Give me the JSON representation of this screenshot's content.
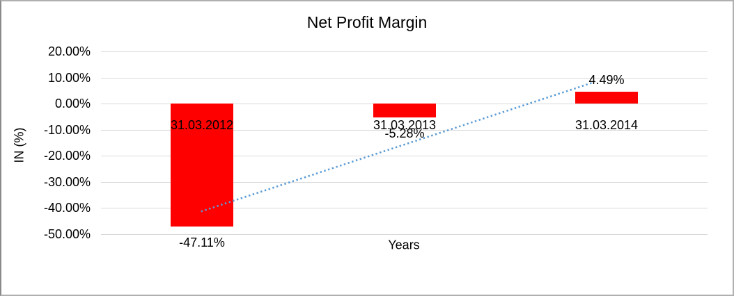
{
  "chart_data": {
    "type": "bar",
    "title": "Net Profit Margin",
    "xlabel": "Years",
    "ylabel": "IN (%)",
    "categories": [
      "31.03.2012",
      "31.03.2013",
      "31.03.2014"
    ],
    "values": [
      -47.11,
      -5.28,
      4.49
    ],
    "data_labels": [
      "-47.11%",
      "-5.28%",
      "4.49%"
    ],
    "ytick_labels": [
      "20.00%",
      "10.00%",
      "0.00%",
      "-10.00%",
      "-20.00%",
      "-30.00%",
      "-40.00%",
      "-50.00%"
    ],
    "ytick_values": [
      20,
      10,
      0,
      -10,
      -20,
      -30,
      -40,
      -50
    ],
    "ylim": [
      -50,
      20
    ],
    "grid": true,
    "legend": "none",
    "bar_color": "#ff0000",
    "gridline_color": "#d9d9d9",
    "trendline": {
      "style": "dotted",
      "color": "#5b9bd5",
      "start": {
        "cat": 0.495,
        "value": -41.3
      },
      "end": {
        "cat": 2.43,
        "value": 8.0
      }
    }
  }
}
